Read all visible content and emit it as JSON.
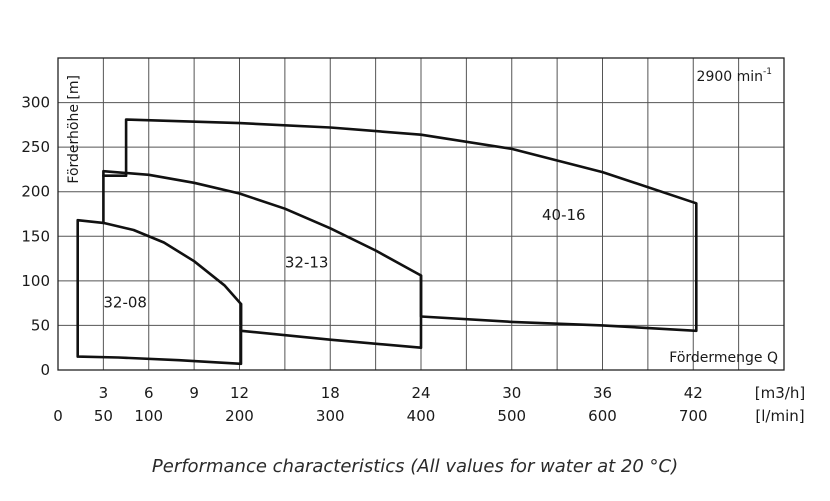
{
  "caption": "Performance characteristics (All values for water at 20 °C)",
  "chart_data": {
    "type": "line",
    "title": "",
    "speed_label": "2900 min",
    "speed_superscript": "-1",
    "ylabel": "Förderhöhe [m]",
    "xlabel": "Fördermenge Q",
    "x_unit_primary": "[m3/h]",
    "x_unit_secondary": "[l/min]",
    "xlim": [
      0,
      48
    ],
    "ylim": [
      0,
      350
    ],
    "grid": true,
    "y_ticks": [
      0,
      50,
      100,
      150,
      200,
      250,
      300
    ],
    "x_ticks_m3h": [
      3,
      6,
      9,
      12,
      18,
      24,
      30,
      36,
      42
    ],
    "x_ticks_lmin": [
      0,
      50,
      100,
      200,
      300,
      400,
      500,
      600,
      700
    ],
    "series": [
      {
        "name": "32-08",
        "label_pos": [
          3,
          70
        ],
        "points": [
          [
            1.3,
            168
          ],
          [
            3,
            165
          ],
          [
            5,
            157
          ],
          [
            7,
            143
          ],
          [
            9,
            122
          ],
          [
            11,
            95
          ],
          [
            12.1,
            74
          ],
          [
            12.1,
            7
          ],
          [
            8,
            11
          ],
          [
            4,
            14
          ],
          [
            1.3,
            15
          ],
          [
            1.3,
            168
          ]
        ]
      },
      {
        "name": "32-13",
        "label_pos": [
          15,
          115
        ],
        "points": [
          [
            3,
            165
          ],
          [
            3,
            223
          ],
          [
            6,
            219
          ],
          [
            9,
            210
          ],
          [
            12,
            198
          ],
          [
            15,
            181
          ],
          [
            18,
            159
          ],
          [
            21,
            134
          ],
          [
            24,
            106
          ],
          [
            24,
            25
          ],
          [
            18,
            34
          ],
          [
            12.1,
            44
          ],
          [
            12.1,
            74
          ]
        ]
      },
      {
        "name": "40-16",
        "label_pos": [
          32,
          168
        ],
        "points": [
          [
            3,
            218
          ],
          [
            4.5,
            218
          ],
          [
            4.5,
            281
          ],
          [
            12,
            277
          ],
          [
            18,
            272
          ],
          [
            24,
            264
          ],
          [
            30,
            248
          ],
          [
            36,
            222
          ],
          [
            42.2,
            187
          ],
          [
            42.2,
            44
          ],
          [
            36,
            50
          ],
          [
            30,
            54
          ],
          [
            24,
            60
          ],
          [
            24,
            106
          ]
        ]
      }
    ]
  }
}
